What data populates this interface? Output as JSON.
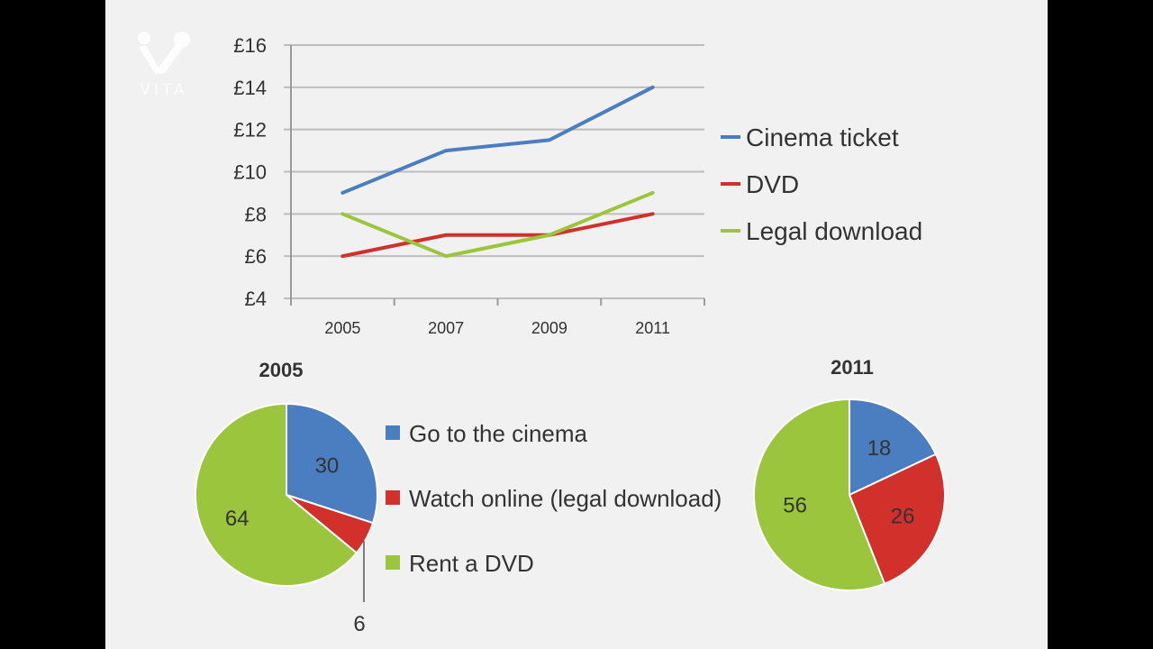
{
  "watermark": {
    "text": "VITA"
  },
  "colors": {
    "blue": "#4a7ec0",
    "red": "#d1302b",
    "green": "#9ac53c",
    "grid": "#bdbdbd",
    "text": "#333333"
  },
  "chart_data": [
    {
      "type": "line",
      "title": "",
      "xlabel": "",
      "ylabel": "",
      "x": [
        "2005",
        "2007",
        "2009",
        "2011"
      ],
      "ylim": [
        4,
        16
      ],
      "yticks": [
        4,
        6,
        8,
        10,
        12,
        14,
        16
      ],
      "ytick_labels": [
        "£4",
        "£6",
        "£8",
        "£10",
        "£12",
        "£14",
        "£16"
      ],
      "grid": true,
      "legend_position": "right",
      "series": [
        {
          "name": "Cinema ticket",
          "color": "blue",
          "values": [
            9,
            11,
            11.5,
            14
          ]
        },
        {
          "name": "DVD",
          "color": "red",
          "values": [
            6,
            7,
            7,
            8
          ]
        },
        {
          "name": "Legal download",
          "color": "green",
          "values": [
            8,
            6,
            7,
            9
          ]
        }
      ]
    },
    {
      "type": "pie",
      "title": "2005",
      "categories": [
        "Go to the cinema",
        "Watch online (legal download)",
        "Rent a DVD"
      ],
      "values": [
        30,
        6,
        64
      ],
      "colors": [
        "blue",
        "red",
        "green"
      ]
    },
    {
      "type": "pie",
      "title": "2011",
      "categories": [
        "Go to the cinema",
        "Watch online (legal download)",
        "Rent a DVD"
      ],
      "values": [
        18,
        26,
        56
      ],
      "colors": [
        "blue",
        "red",
        "green"
      ]
    }
  ],
  "pie_legend": [
    {
      "label": "Go to the cinema",
      "color": "blue"
    },
    {
      "label": "Watch online (legal download)",
      "color": "red"
    },
    {
      "label": "Rent a DVD",
      "color": "green"
    }
  ]
}
